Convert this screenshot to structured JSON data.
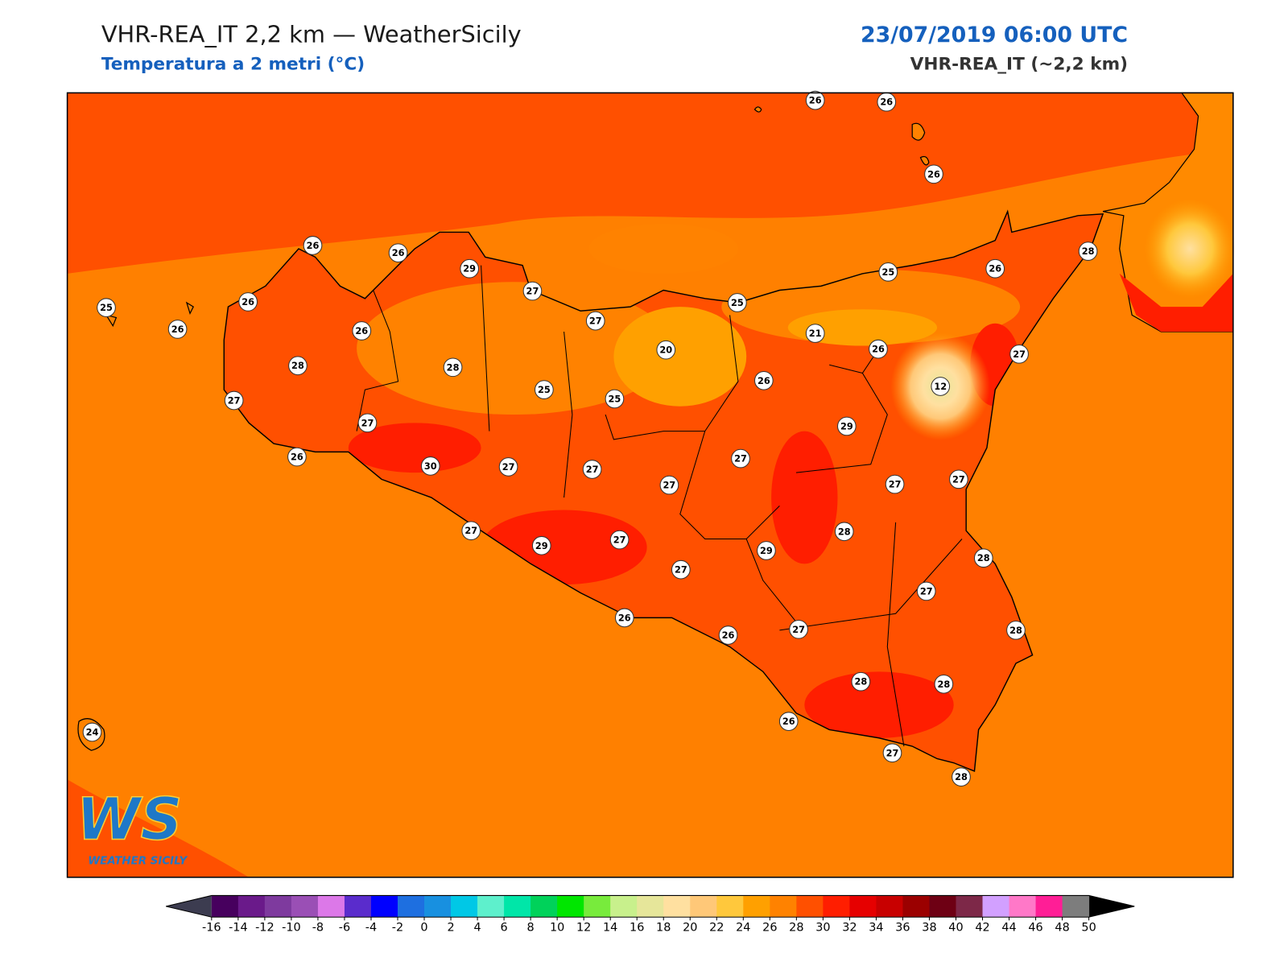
{
  "header": {
    "title": "VHR-REA_IT 2,2 km — WeatherSicily",
    "subtitle": "Temperatura a 2 metri (°C)",
    "date": "23/07/2019 06:00 UTC",
    "model": "VHR-REA_IT (~2,2 km)"
  },
  "stations": [
    26,
    26,
    26,
    26,
    26,
    29,
    27,
    26,
    25,
    26,
    26,
    27,
    25,
    25,
    26,
    28,
    21,
    26,
    27,
    20,
    12,
    26,
    28,
    28,
    25,
    25,
    27,
    27,
    29,
    30,
    27,
    27,
    27,
    27,
    27,
    27,
    26,
    27,
    29,
    27,
    28,
    29,
    28,
    27,
    27,
    26,
    26,
    27,
    28,
    28,
    28,
    26,
    27,
    28,
    24
  ],
  "colorbar": {
    "ticks": [
      -16,
      -14,
      -12,
      -10,
      -8,
      -6,
      -4,
      -2,
      0,
      2,
      4,
      6,
      8,
      10,
      12,
      14,
      16,
      18,
      20,
      22,
      24,
      26,
      28,
      30,
      32,
      34,
      36,
      38,
      40,
      42,
      44,
      46,
      48,
      50
    ],
    "colors": [
      "#47005e",
      "#6a1a8a",
      "#7e3a9e",
      "#9a4fb5",
      "#dc78e8",
      "#5a2ccc",
      "#0000ff",
      "#1e6fe0",
      "#1890e0",
      "#00c8e6",
      "#5ef0cc",
      "#00e6a8",
      "#00d25a",
      "#00e600",
      "#78eb3c",
      "#c8f08c",
      "#e6e69a",
      "#ffe0a0",
      "#ffc878",
      "#ffc83c",
      "#ffa000",
      "#ff8200",
      "#ff5000",
      "#ff1e00",
      "#e60000",
      "#c80000",
      "#9b0000",
      "#6e0014",
      "#7d2848",
      "#d2a0ff",
      "#ff78c8",
      "#ff1e96",
      "#7d7d7d"
    ],
    "under": "#3c3c50",
    "over": "#000000"
  },
  "logo": {
    "initials": "WS",
    "name": "WEATHER SICILY"
  }
}
